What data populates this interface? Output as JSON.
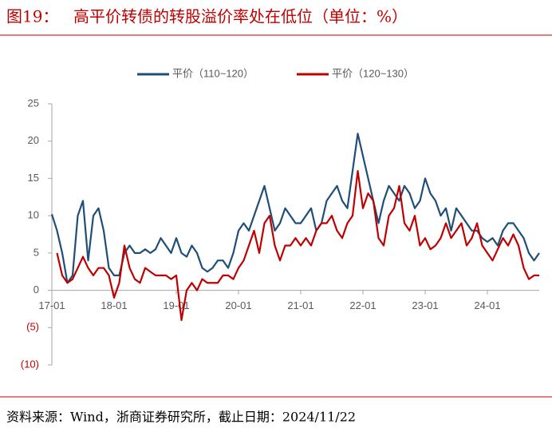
{
  "chart_data": {
    "type": "line",
    "figure_label": "图19：",
    "title": "高平价转债的转股溢价率处在低位（单位：%）",
    "source": "资料来源：Wind，浙商证券研究所，截止日期：2024/11/22",
    "x": [
      "17-01",
      "17-02",
      "17-03",
      "17-04",
      "17-05",
      "17-06",
      "17-07",
      "17-08",
      "17-09",
      "17-10",
      "17-11",
      "17-12",
      "18-01",
      "18-02",
      "18-03",
      "18-04",
      "18-05",
      "18-06",
      "18-07",
      "18-08",
      "18-09",
      "18-10",
      "18-11",
      "18-12",
      "19-01",
      "19-02",
      "19-03",
      "19-04",
      "19-05",
      "19-06",
      "19-07",
      "19-08",
      "19-09",
      "19-10",
      "19-11",
      "19-12",
      "20-01",
      "20-02",
      "20-03",
      "20-04",
      "20-05",
      "20-06",
      "20-07",
      "20-08",
      "20-09",
      "20-10",
      "20-11",
      "20-12",
      "21-01",
      "21-02",
      "21-03",
      "21-04",
      "21-05",
      "21-06",
      "21-07",
      "21-08",
      "21-09",
      "21-10",
      "21-11",
      "21-12",
      "22-01",
      "22-02",
      "22-03",
      "22-04",
      "22-05",
      "22-06",
      "22-07",
      "22-08",
      "22-09",
      "22-10",
      "22-11",
      "22-12",
      "23-01",
      "23-02",
      "23-03",
      "23-04",
      "23-05",
      "23-06",
      "23-07",
      "23-08",
      "23-09",
      "23-10",
      "23-11",
      "23-12",
      "24-01",
      "24-02",
      "24-03",
      "24-04",
      "24-05",
      "24-06",
      "24-07",
      "24-08",
      "24-09",
      "24-10",
      "24-11"
    ],
    "xticks": [
      "17-01",
      "18-01",
      "19-01",
      "20-01",
      "21-01",
      "22-01",
      "23-01",
      "24-01"
    ],
    "series": [
      {
        "name": "平价（110~120）",
        "color": "#1f4e79",
        "values": [
          10.2,
          8,
          5,
          1,
          2,
          10,
          12,
          4,
          10,
          11,
          8,
          3,
          2,
          2,
          5,
          6,
          5,
          5,
          5.5,
          5,
          5.5,
          7,
          6,
          5,
          7,
          5,
          4.5,
          6,
          5,
          3,
          2.5,
          3,
          4,
          4,
          3,
          5,
          8,
          9,
          8,
          10,
          12,
          14,
          11,
          8,
          9,
          11,
          10,
          9,
          9,
          10,
          11,
          8,
          9,
          12,
          13,
          14,
          12,
          11,
          16,
          21,
          18,
          15,
          12,
          9,
          12,
          14,
          13,
          12,
          14,
          13,
          11,
          12,
          15,
          13,
          12,
          10,
          11,
          8,
          11,
          10,
          9,
          8,
          8,
          7,
          6.5,
          7,
          6,
          8,
          9,
          9,
          8,
          7,
          5,
          4,
          5
        ]
      },
      {
        "name": "平价（120~130）",
        "color": "#c00000",
        "values": [
          null,
          5,
          2,
          1,
          1.5,
          3,
          4.5,
          3,
          2,
          3,
          3,
          2,
          -1,
          1,
          6,
          3,
          1.5,
          1,
          3,
          2.5,
          2,
          2,
          2,
          1.5,
          2,
          -4,
          0,
          1,
          0,
          1.5,
          1,
          1,
          1,
          2,
          2,
          1.5,
          3,
          4,
          6,
          8,
          5,
          9,
          10,
          6,
          4,
          6,
          6,
          7,
          6,
          7,
          6,
          8,
          9,
          9,
          10,
          8,
          7,
          9,
          10,
          16,
          11,
          13,
          12,
          7,
          6,
          10,
          11,
          14,
          9,
          8,
          10,
          6,
          7,
          5.5,
          6,
          7,
          9,
          7,
          8,
          9,
          6,
          7,
          9,
          6,
          5,
          4,
          5.5,
          7,
          6,
          7.5,
          6,
          3,
          1.5,
          2,
          2
        ]
      }
    ],
    "ylim": [
      -10,
      25
    ],
    "yticks": [
      {
        "value": -10,
        "label": "(10)"
      },
      {
        "value": -5,
        "label": "(5)"
      },
      0,
      5,
      10,
      15,
      20,
      25
    ],
    "legend": "top"
  }
}
